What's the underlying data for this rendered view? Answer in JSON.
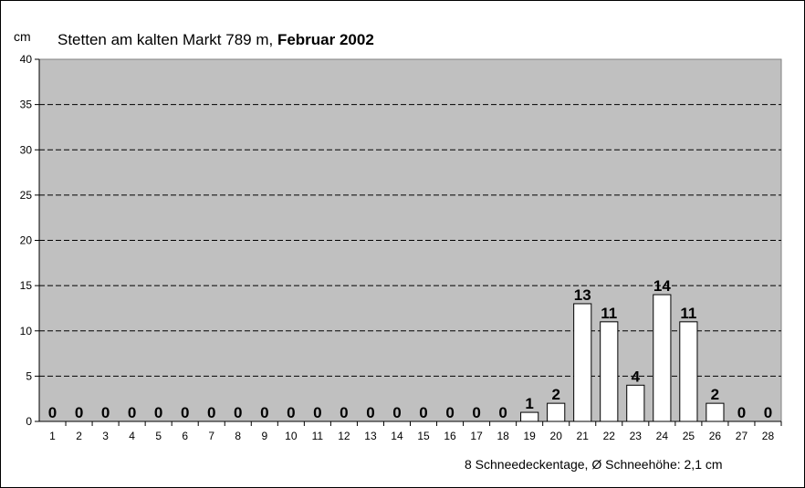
{
  "chart_data": {
    "type": "bar",
    "title_prefix": "Stetten am kalten Markt 789 m, ",
    "title_bold": "Februar 2002",
    "ylabel": "cm",
    "xlabel": "",
    "ylim": [
      0,
      40
    ],
    "yticks": [
      0,
      5,
      10,
      15,
      20,
      25,
      30,
      35,
      40
    ],
    "grid": true,
    "legend": "none",
    "categories": [
      "1",
      "2",
      "3",
      "4",
      "5",
      "6",
      "7",
      "8",
      "9",
      "10",
      "11",
      "12",
      "13",
      "14",
      "15",
      "16",
      "17",
      "18",
      "19",
      "20",
      "21",
      "22",
      "23",
      "24",
      "25",
      "26",
      "27",
      "28"
    ],
    "values": [
      0,
      0,
      0,
      0,
      0,
      0,
      0,
      0,
      0,
      0,
      0,
      0,
      0,
      0,
      0,
      0,
      0,
      0,
      1,
      2,
      13,
      11,
      4,
      14,
      11,
      2,
      0,
      0
    ],
    "footer": "8 Schneedeckentage,  Ø Schneehöhe:  2,1 cm"
  },
  "colors": {
    "plot_background": "#c0c0c0",
    "bar_fill": "#ffffff",
    "bar_stroke": "#000000",
    "gridline": "#000000"
  }
}
